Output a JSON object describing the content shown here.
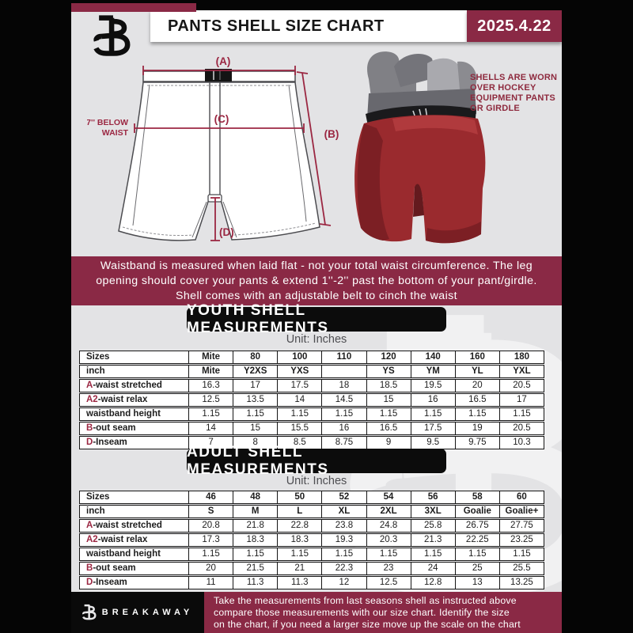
{
  "header": {
    "title": "PANTS SHELL SIZE CHART",
    "date": "2025.4.22"
  },
  "colors": {
    "accent_maroon": "#8a2945",
    "diagram_maroon": "#9b2742",
    "page_black": "#050505",
    "bg_gray": "#e3e3e5"
  },
  "diagram": {
    "label_a": "(A)",
    "label_b": "(B)",
    "label_c": "(C)",
    "label_d": "(D)",
    "below_waist_line1": "7'' BELOW",
    "below_waist_line2": "WAIST",
    "shell_note_lines": [
      "SHELLS ARE WORN",
      "OVER HOCKEY",
      "EQUIPMENT PANTS",
      "OR GIRDLE"
    ]
  },
  "info_banner": {
    "lines": [
      "Waistband is measured when laid flat - not your total waist circumference. The leg",
      "opening should cover your pants & extend 1''-2'' past the bottom of your pant/girdle.",
      "Shell comes with an adjustable belt to cinch the waist"
    ]
  },
  "sections": [
    {
      "title": "YOUTH SHELL MEASUREMENTS",
      "unit": "Unit: Inches",
      "table": {
        "rows": [
          {
            "prefix": "",
            "label": "Sizes",
            "bold_values": true,
            "values": [
              "Mite",
              "80",
              "100",
              "110",
              "120",
              "140",
              "160",
              "180"
            ]
          },
          {
            "prefix": "",
            "label": "inch",
            "bold_values": true,
            "values": [
              "Mite",
              "Y2XS",
              "YXS",
              "",
              "YS",
              "YM",
              "YL",
              "YXL"
            ]
          },
          {
            "prefix": "A",
            "label": "-waist stretched",
            "values": [
              "16.3",
              "17",
              "17.5",
              "18",
              "18.5",
              "19.5",
              "20",
              "20.5"
            ]
          },
          {
            "prefix": "A2",
            "label": "-waist relax",
            "values": [
              "12.5",
              "13.5",
              "14",
              "14.5",
              "15",
              "16",
              "16.5",
              "17"
            ]
          },
          {
            "prefix": "",
            "label": "waistband height",
            "values": [
              "1.15",
              "1.15",
              "1.15",
              "1.15",
              "1.15",
              "1.15",
              "1.15",
              "1.15"
            ]
          },
          {
            "prefix": "B",
            "label": "-out seam",
            "values": [
              "14",
              "15",
              "15.5",
              "16",
              "16.5",
              "17.5",
              "19",
              "20.5"
            ]
          },
          {
            "prefix": "D",
            "label": "-Inseam",
            "values": [
              "7",
              "8",
              "8.5",
              "8.75",
              "9",
              "9.5",
              "9.75",
              "10.3"
            ]
          }
        ]
      }
    },
    {
      "title": "ADULT SHELL MEASUREMENTS",
      "unit": "Unit: Inches",
      "table": {
        "rows": [
          {
            "prefix": "",
            "label": "Sizes",
            "bold_values": true,
            "values": [
              "46",
              "48",
              "50",
              "52",
              "54",
              "56",
              "58",
              "60"
            ]
          },
          {
            "prefix": "",
            "label": "inch",
            "bold_values": true,
            "values": [
              "S",
              "M",
              "L",
              "XL",
              "2XL",
              "3XL",
              "Goalie",
              "Goalie+"
            ]
          },
          {
            "prefix": "A",
            "label": "-waist stretched",
            "values": [
              "20.8",
              "21.8",
              "22.8",
              "23.8",
              "24.8",
              "25.8",
              "26.75",
              "27.75"
            ]
          },
          {
            "prefix": "A2",
            "label": "-waist relax",
            "values": [
              "17.3",
              "18.3",
              "18.3",
              "19.3",
              "20.3",
              "21.3",
              "22.25",
              "23.25"
            ]
          },
          {
            "prefix": "",
            "label": "waistband height",
            "values": [
              "1.15",
              "1.15",
              "1.15",
              "1.15",
              "1.15",
              "1.15",
              "1.15",
              "1.15"
            ]
          },
          {
            "prefix": "B",
            "label": "-out seam",
            "values": [
              "20",
              "21.5",
              "21",
              "22.3",
              "23",
              "24",
              "25",
              "25.5"
            ]
          },
          {
            "prefix": "D",
            "label": "-Inseam",
            "values": [
              "11",
              "11.3",
              "11.3",
              "12",
              "12.5",
              "12.8",
              "13",
              "13.25"
            ]
          }
        ]
      }
    }
  ],
  "footer": {
    "brand": "BREAKAWAY",
    "lines": [
      "Take the measurements from last seasons shell as instructed above",
      "compare those measurements  with our size chart. Identify the size",
      "on the chart, if you need a larger size move up the scale on the chart"
    ]
  }
}
